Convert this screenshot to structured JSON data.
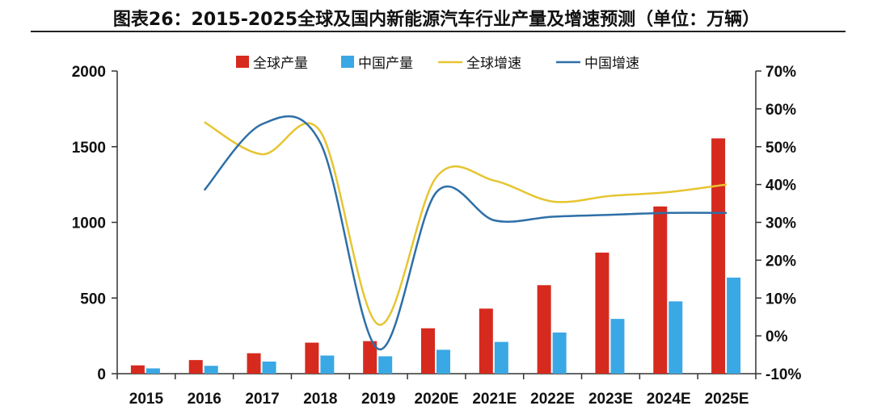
{
  "title": "图表26：2015-2025全球及国内新能源汽车行业产量及增速预测（单位：万辆）",
  "chart_data": {
    "type": "bar",
    "categories": [
      "2015",
      "2016",
      "2017",
      "2018",
      "2019",
      "2020E",
      "2021E",
      "2022E",
      "2023E",
      "2024E",
      "2025E"
    ],
    "series": [
      {
        "name": "全球产量",
        "kind": "bar",
        "axis": "left",
        "color": "#d62a1e",
        "values": [
          55,
          90,
          135,
          205,
          215,
          300,
          430,
          585,
          800,
          1105,
          1555
        ]
      },
      {
        "name": "中国产量",
        "kind": "bar",
        "axis": "left",
        "color": "#3aa8e4",
        "values": [
          35,
          52,
          80,
          120,
          115,
          158,
          210,
          272,
          362,
          478,
          635
        ]
      },
      {
        "name": "全球增速",
        "kind": "line",
        "axis": "right",
        "color": "#e6c532",
        "values": [
          null,
          56.5,
          48,
          54,
          3,
          42,
          41,
          35.5,
          37,
          38,
          40
        ]
      },
      {
        "name": "中国增速",
        "kind": "line",
        "axis": "right",
        "color": "#2e6fa8",
        "values": [
          null,
          38.5,
          56,
          51,
          -3.5,
          38,
          30.5,
          31.5,
          32,
          32.5,
          32.5
        ]
      }
    ],
    "y_left": {
      "ylim": [
        0,
        2000
      ],
      "ticks": [
        "0",
        "500",
        "1000",
        "1500",
        "2000"
      ]
    },
    "y_right": {
      "ylim": [
        -10,
        70
      ],
      "ticks": [
        "-10%",
        "0%",
        "10%",
        "20%",
        "30%",
        "40%",
        "50%",
        "60%",
        "70%"
      ]
    },
    "legend_position": "top-center",
    "grid": false
  }
}
